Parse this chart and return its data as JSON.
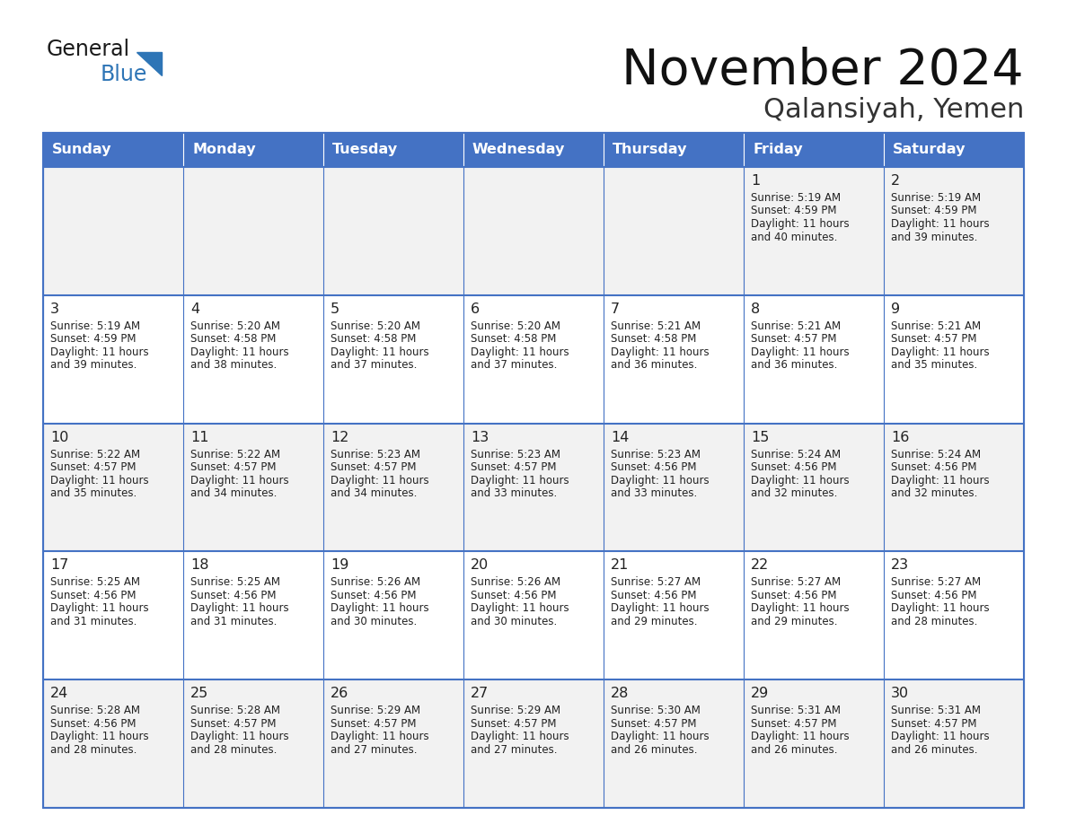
{
  "title": "November 2024",
  "subtitle": "Qalansiyah, Yemen",
  "days_of_week": [
    "Sunday",
    "Monday",
    "Tuesday",
    "Wednesday",
    "Thursday",
    "Friday",
    "Saturday"
  ],
  "header_bg": "#4472C4",
  "header_text": "#FFFFFF",
  "cell_bg_odd": "#F2F2F2",
  "cell_bg_even": "#FFFFFF",
  "border_color": "#4472C4",
  "text_color": "#222222",
  "title_color": "#111111",
  "subtitle_color": "#333333",
  "logo_black": "#1a1a1a",
  "logo_blue": "#2E75B6",
  "weeks": [
    [
      {
        "date": "",
        "sunrise": "",
        "sunset": "",
        "daylight": ""
      },
      {
        "date": "",
        "sunrise": "",
        "sunset": "",
        "daylight": ""
      },
      {
        "date": "",
        "sunrise": "",
        "sunset": "",
        "daylight": ""
      },
      {
        "date": "",
        "sunrise": "",
        "sunset": "",
        "daylight": ""
      },
      {
        "date": "",
        "sunrise": "",
        "sunset": "",
        "daylight": ""
      },
      {
        "date": "1",
        "sunrise": "5:19 AM",
        "sunset": "4:59 PM",
        "daylight": "11 hours and 40 minutes."
      },
      {
        "date": "2",
        "sunrise": "5:19 AM",
        "sunset": "4:59 PM",
        "daylight": "11 hours and 39 minutes."
      }
    ],
    [
      {
        "date": "3",
        "sunrise": "5:19 AM",
        "sunset": "4:59 PM",
        "daylight": "11 hours and 39 minutes."
      },
      {
        "date": "4",
        "sunrise": "5:20 AM",
        "sunset": "4:58 PM",
        "daylight": "11 hours and 38 minutes."
      },
      {
        "date": "5",
        "sunrise": "5:20 AM",
        "sunset": "4:58 PM",
        "daylight": "11 hours and 37 minutes."
      },
      {
        "date": "6",
        "sunrise": "5:20 AM",
        "sunset": "4:58 PM",
        "daylight": "11 hours and 37 minutes."
      },
      {
        "date": "7",
        "sunrise": "5:21 AM",
        "sunset": "4:58 PM",
        "daylight": "11 hours and 36 minutes."
      },
      {
        "date": "8",
        "sunrise": "5:21 AM",
        "sunset": "4:57 PM",
        "daylight": "11 hours and 36 minutes."
      },
      {
        "date": "9",
        "sunrise": "5:21 AM",
        "sunset": "4:57 PM",
        "daylight": "11 hours and 35 minutes."
      }
    ],
    [
      {
        "date": "10",
        "sunrise": "5:22 AM",
        "sunset": "4:57 PM",
        "daylight": "11 hours and 35 minutes."
      },
      {
        "date": "11",
        "sunrise": "5:22 AM",
        "sunset": "4:57 PM",
        "daylight": "11 hours and 34 minutes."
      },
      {
        "date": "12",
        "sunrise": "5:23 AM",
        "sunset": "4:57 PM",
        "daylight": "11 hours and 34 minutes."
      },
      {
        "date": "13",
        "sunrise": "5:23 AM",
        "sunset": "4:57 PM",
        "daylight": "11 hours and 33 minutes."
      },
      {
        "date": "14",
        "sunrise": "5:23 AM",
        "sunset": "4:56 PM",
        "daylight": "11 hours and 33 minutes."
      },
      {
        "date": "15",
        "sunrise": "5:24 AM",
        "sunset": "4:56 PM",
        "daylight": "11 hours and 32 minutes."
      },
      {
        "date": "16",
        "sunrise": "5:24 AM",
        "sunset": "4:56 PM",
        "daylight": "11 hours and 32 minutes."
      }
    ],
    [
      {
        "date": "17",
        "sunrise": "5:25 AM",
        "sunset": "4:56 PM",
        "daylight": "11 hours and 31 minutes."
      },
      {
        "date": "18",
        "sunrise": "5:25 AM",
        "sunset": "4:56 PM",
        "daylight": "11 hours and 31 minutes."
      },
      {
        "date": "19",
        "sunrise": "5:26 AM",
        "sunset": "4:56 PM",
        "daylight": "11 hours and 30 minutes."
      },
      {
        "date": "20",
        "sunrise": "5:26 AM",
        "sunset": "4:56 PM",
        "daylight": "11 hours and 30 minutes."
      },
      {
        "date": "21",
        "sunrise": "5:27 AM",
        "sunset": "4:56 PM",
        "daylight": "11 hours and 29 minutes."
      },
      {
        "date": "22",
        "sunrise": "5:27 AM",
        "sunset": "4:56 PM",
        "daylight": "11 hours and 29 minutes."
      },
      {
        "date": "23",
        "sunrise": "5:27 AM",
        "sunset": "4:56 PM",
        "daylight": "11 hours and 28 minutes."
      }
    ],
    [
      {
        "date": "24",
        "sunrise": "5:28 AM",
        "sunset": "4:56 PM",
        "daylight": "11 hours and 28 minutes."
      },
      {
        "date": "25",
        "sunrise": "5:28 AM",
        "sunset": "4:57 PM",
        "daylight": "11 hours and 28 minutes."
      },
      {
        "date": "26",
        "sunrise": "5:29 AM",
        "sunset": "4:57 PM",
        "daylight": "11 hours and 27 minutes."
      },
      {
        "date": "27",
        "sunrise": "5:29 AM",
        "sunset": "4:57 PM",
        "daylight": "11 hours and 27 minutes."
      },
      {
        "date": "28",
        "sunrise": "5:30 AM",
        "sunset": "4:57 PM",
        "daylight": "11 hours and 26 minutes."
      },
      {
        "date": "29",
        "sunrise": "5:31 AM",
        "sunset": "4:57 PM",
        "daylight": "11 hours and 26 minutes."
      },
      {
        "date": "30",
        "sunrise": "5:31 AM",
        "sunset": "4:57 PM",
        "daylight": "11 hours and 26 minutes."
      }
    ]
  ]
}
